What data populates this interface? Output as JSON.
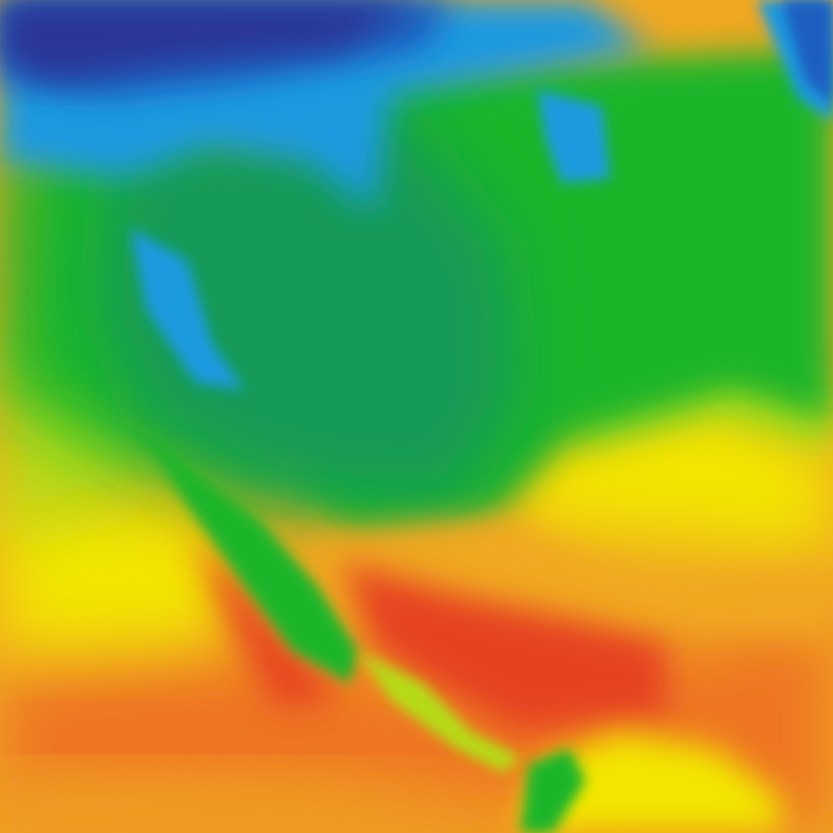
{
  "map": {
    "palette": {
      "deep_blue": "#2b3596",
      "blue": "#1f5fc0",
      "light_blue": "#1a9ae0",
      "teal_green": "#189a58",
      "green": "#1fb52a",
      "yellow_green": "#b5dc12",
      "yellow": "#f2e600",
      "orange": "#f0a822",
      "orange_red": "#ee7424",
      "red": "#e64322"
    }
  }
}
